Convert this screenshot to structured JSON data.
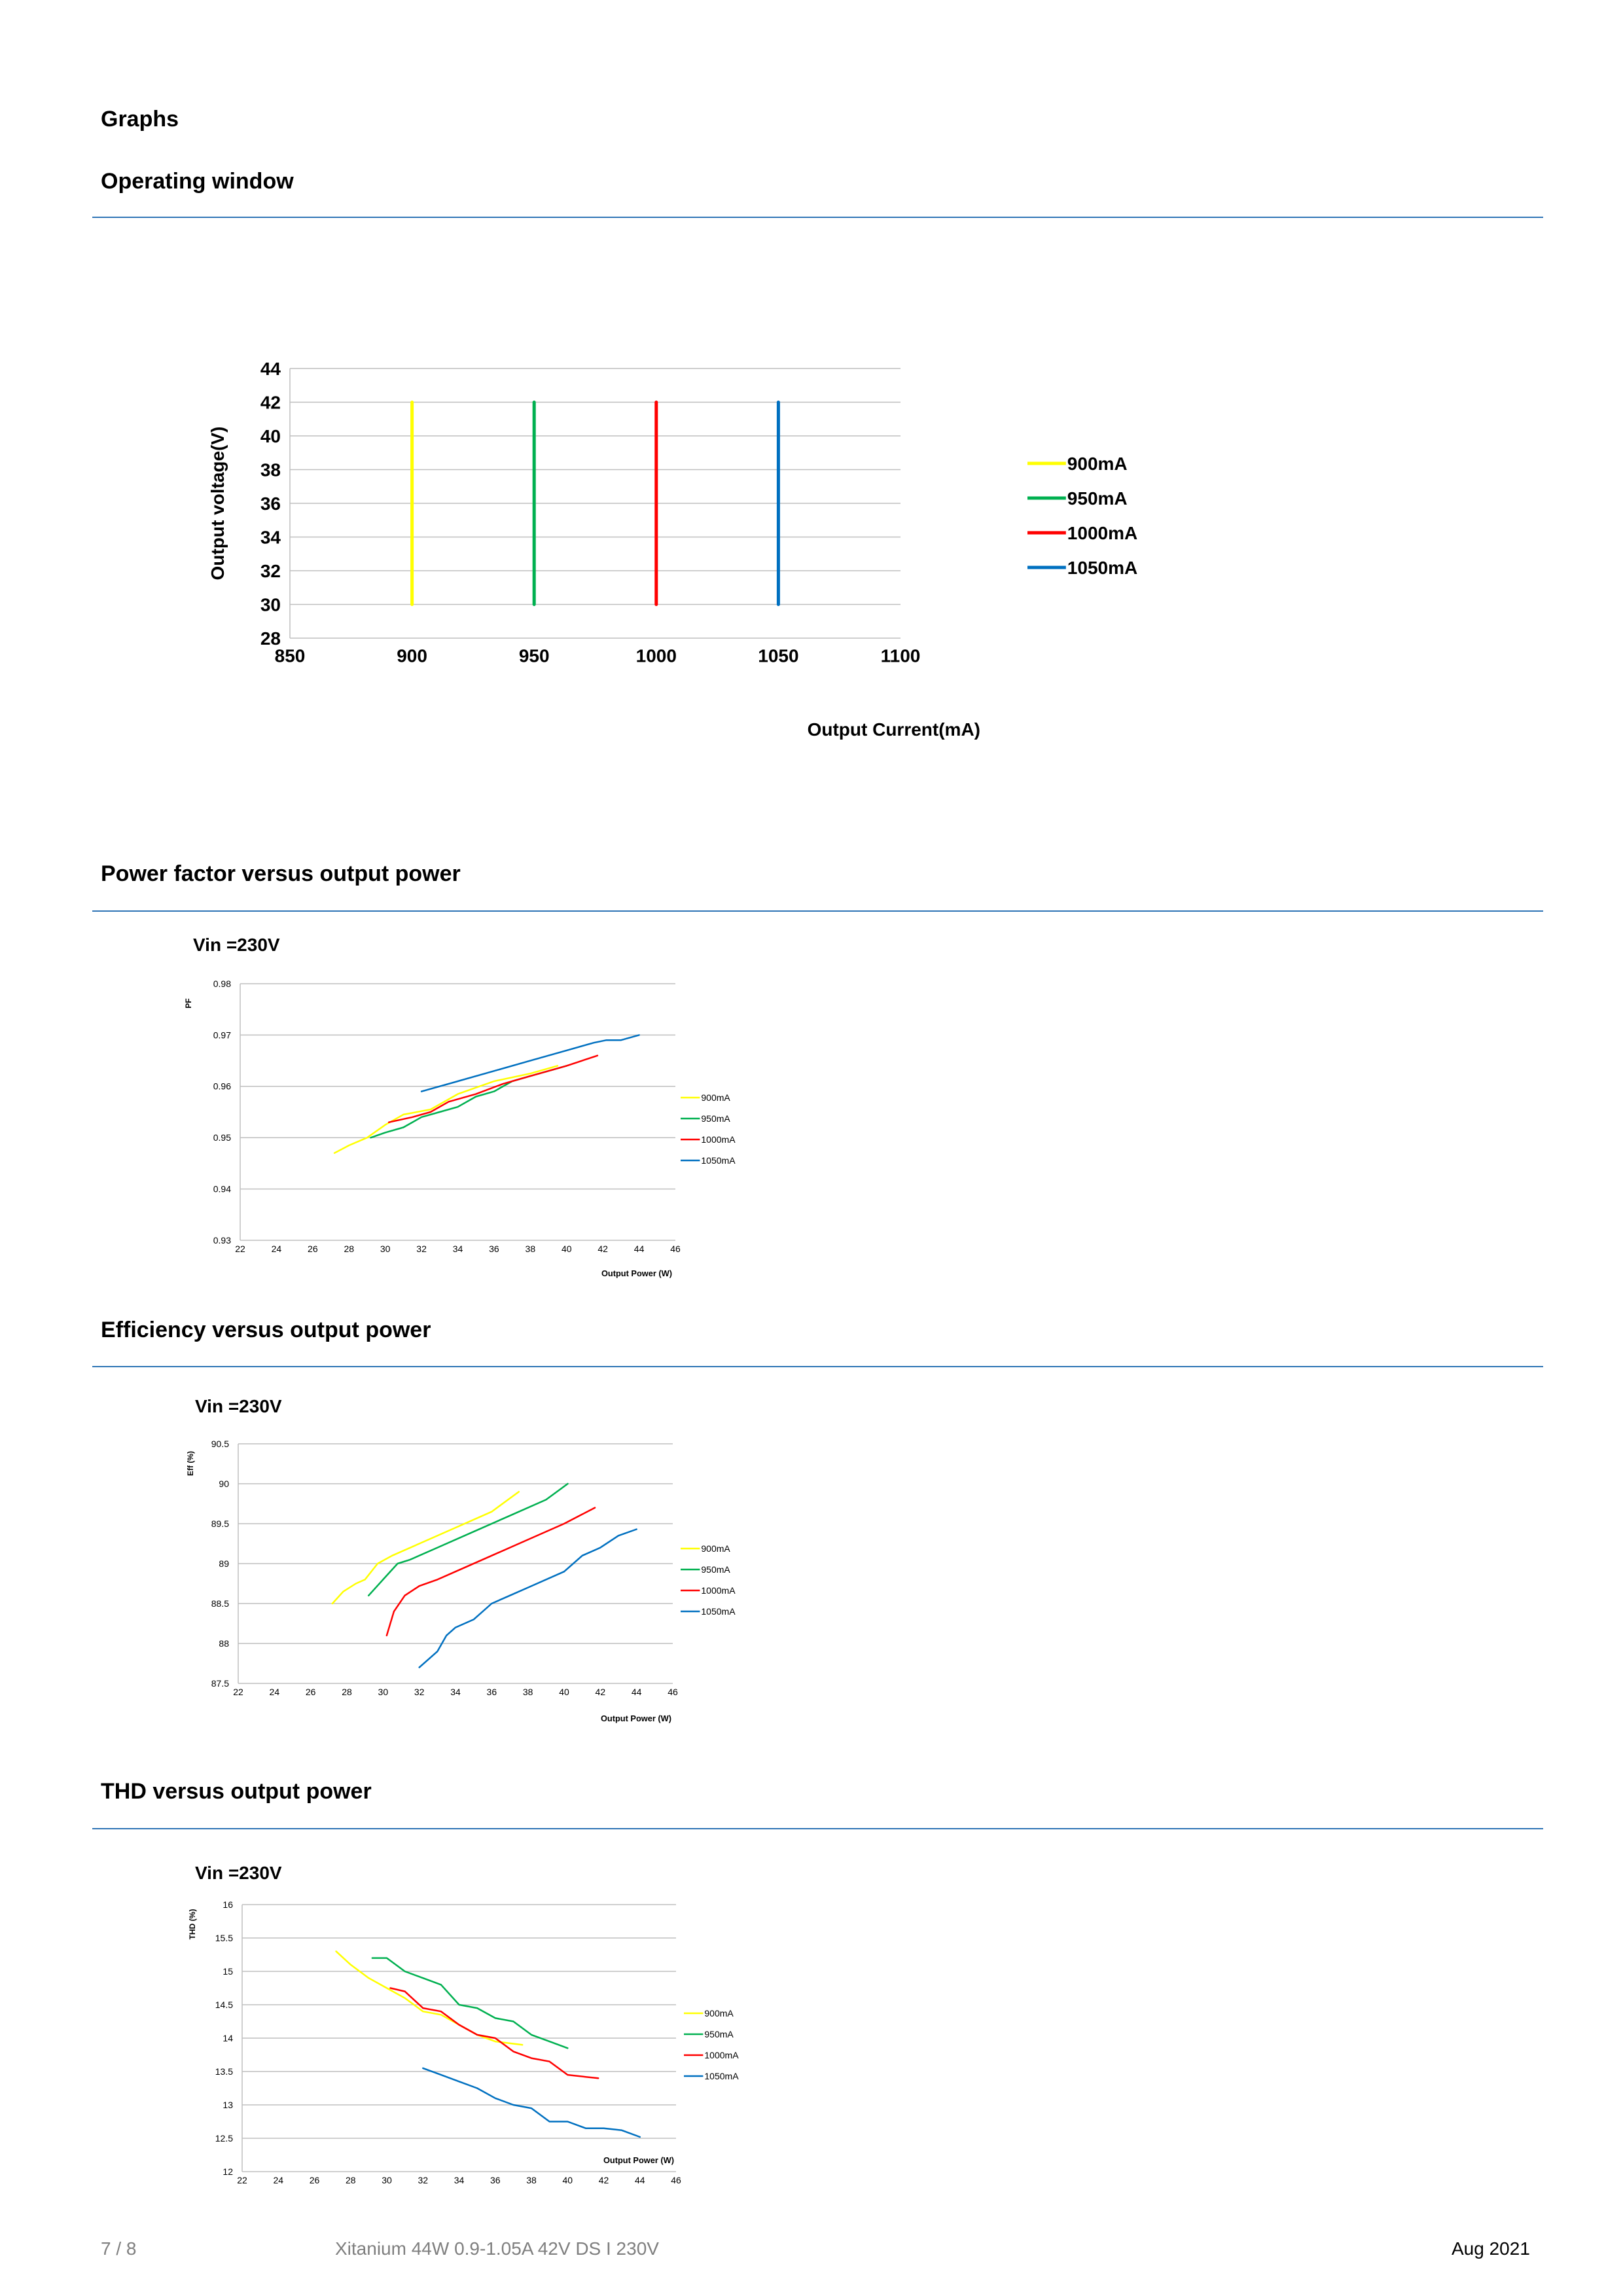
{
  "page": {
    "section_title": "Graphs",
    "footer": {
      "page_number": "7 / 8",
      "product": "Xitanium 44W 0.9-1.05A 42V DS I 230V",
      "date": "Aug 2021"
    }
  },
  "sections": [
    {
      "title": "Operating window"
    },
    {
      "title": "Power factor versus output power",
      "note": "Vin =230V"
    },
    {
      "title": "Efficiency versus output power",
      "note": "Vin =230V"
    },
    {
      "title": "THD versus output power",
      "note": "Vin =230V"
    }
  ],
  "colors": {
    "900mA": "#ffff00",
    "950mA": "#00b050",
    "1000mA": "#ff0000",
    "1050mA": "#0070c0",
    "rule": "#2e74b5"
  },
  "chart_data": [
    {
      "type": "line",
      "title": "",
      "xlabel": "Output Current(mA)",
      "ylabel": "Output voltage(V)",
      "xlim": [
        850,
        1100
      ],
      "ylim": [
        28,
        44
      ],
      "xticks": [
        850,
        900,
        950,
        1000,
        1050,
        1100
      ],
      "yticks": [
        28,
        30,
        32,
        34,
        36,
        38,
        40,
        42,
        44
      ],
      "grid": true,
      "legend": "right",
      "series": [
        {
          "name": "900mA",
          "color": "#ffff00",
          "points": [
            [
              900,
              30
            ],
            [
              900,
              42
            ]
          ]
        },
        {
          "name": "950mA",
          "color": "#00b050",
          "points": [
            [
              950,
              30
            ],
            [
              950,
              42
            ]
          ]
        },
        {
          "name": "1000mA",
          "color": "#ff0000",
          "points": [
            [
              1000,
              30
            ],
            [
              1000,
              42
            ]
          ]
        },
        {
          "name": "1050mA",
          "color": "#0070c0",
          "points": [
            [
              1050,
              30
            ],
            [
              1050,
              42
            ]
          ]
        }
      ]
    },
    {
      "type": "line",
      "title": "",
      "xlabel": "Output Power (W)",
      "ylabel": "PF",
      "xlim": [
        22,
        46
      ],
      "ylim": [
        0.93,
        0.98
      ],
      "xticks": [
        22,
        24,
        26,
        28,
        30,
        32,
        34,
        36,
        38,
        40,
        42,
        44,
        46
      ],
      "yticks": [
        0.93,
        0.94,
        0.95,
        0.96,
        0.97,
        0.98
      ],
      "ytick_decimals": 2,
      "grid": true,
      "legend": "right",
      "series": [
        {
          "name": "900mA",
          "color": "#ffff00",
          "points": [
            [
              27.2,
              0.947
            ],
            [
              28,
              0.9485
            ],
            [
              29,
              0.95
            ],
            [
              30,
              0.9525
            ],
            [
              31,
              0.9545
            ],
            [
              32.5,
              0.9555
            ],
            [
              34,
              0.9585
            ],
            [
              36,
              0.961
            ],
            [
              38,
              0.9625
            ],
            [
              39.5,
              0.964
            ]
          ]
        },
        {
          "name": "950mA",
          "color": "#00b050",
          "points": [
            [
              29.2,
              0.95
            ],
            [
              30,
              0.951
            ],
            [
              31,
              0.952
            ],
            [
              32,
              0.954
            ],
            [
              33,
              0.955
            ],
            [
              34,
              0.956
            ],
            [
              35,
              0.958
            ],
            [
              36,
              0.959
            ],
            [
              37,
              0.961
            ],
            [
              38,
              0.962
            ],
            [
              39,
              0.963
            ],
            [
              40,
              0.964
            ]
          ]
        },
        {
          "name": "1000mA",
          "color": "#ff0000",
          "points": [
            [
              30.2,
              0.953
            ],
            [
              31.5,
              0.954
            ],
            [
              32.5,
              0.955
            ],
            [
              33.5,
              0.957
            ],
            [
              35,
              0.9585
            ],
            [
              36.5,
              0.9605
            ],
            [
              38,
              0.962
            ],
            [
              40,
              0.964
            ],
            [
              41.7,
              0.966
            ]
          ]
        },
        {
          "name": "1050mA",
          "color": "#0070c0",
          "points": [
            [
              32,
              0.959
            ],
            [
              34,
              0.961
            ],
            [
              36,
              0.963
            ],
            [
              38,
              0.965
            ],
            [
              40,
              0.967
            ],
            [
              41.5,
              0.9685
            ],
            [
              42.2,
              0.969
            ],
            [
              43,
              0.969
            ],
            [
              43.5,
              0.9695
            ],
            [
              44,
              0.97
            ]
          ]
        }
      ]
    },
    {
      "type": "line",
      "title": "",
      "xlabel": "Output Power (W)",
      "ylabel": "Eff  (%)",
      "xlim": [
        22,
        46
      ],
      "ylim": [
        87.5,
        90.5
      ],
      "xticks": [
        22,
        24,
        26,
        28,
        30,
        32,
        34,
        36,
        38,
        40,
        42,
        44,
        46
      ],
      "yticks": [
        87.5,
        88,
        88.5,
        89,
        89.5,
        90,
        90.5
      ],
      "ytick_decimals": 0,
      "grid": true,
      "legend": "right",
      "series": [
        {
          "name": "900mA",
          "color": "#ffff00",
          "points": [
            [
              27.2,
              88.5
            ],
            [
              27.8,
              88.65
            ],
            [
              28.5,
              88.75
            ],
            [
              29,
              88.8
            ],
            [
              29.7,
              89.0
            ],
            [
              30.5,
              89.1
            ],
            [
              32,
              89.25
            ],
            [
              34,
              89.45
            ],
            [
              36,
              89.65
            ],
            [
              37.5,
              89.9
            ]
          ]
        },
        {
          "name": "950mA",
          "color": "#00b050",
          "points": [
            [
              29.2,
              88.6
            ],
            [
              30,
              88.8
            ],
            [
              30.8,
              89.0
            ],
            [
              31.5,
              89.05
            ],
            [
              33,
              89.2
            ],
            [
              35,
              89.4
            ],
            [
              37,
              89.6
            ],
            [
              39,
              89.8
            ],
            [
              40.2,
              90.0
            ]
          ]
        },
        {
          "name": "1000mA",
          "color": "#ff0000",
          "points": [
            [
              30.2,
              88.1
            ],
            [
              30.6,
              88.4
            ],
            [
              31.2,
              88.6
            ],
            [
              32,
              88.72
            ],
            [
              33,
              88.8
            ],
            [
              34,
              88.9
            ],
            [
              36,
              89.1
            ],
            [
              38,
              89.3
            ],
            [
              40,
              89.5
            ],
            [
              41.7,
              89.7
            ]
          ]
        },
        {
          "name": "1050mA",
          "color": "#0070c0",
          "points": [
            [
              32,
              87.7
            ],
            [
              33,
              87.9
            ],
            [
              33.5,
              88.1
            ],
            [
              34,
              88.2
            ],
            [
              35,
              88.3
            ],
            [
              36,
              88.5
            ],
            [
              37,
              88.6
            ],
            [
              38,
              88.7
            ],
            [
              40,
              88.9
            ],
            [
              41,
              89.1
            ],
            [
              42,
              89.2
            ],
            [
              43,
              89.35
            ],
            [
              44,
              89.43
            ]
          ]
        }
      ]
    },
    {
      "type": "line",
      "title": "",
      "xlabel": "Output Power (W)",
      "ylabel": "THD  (%)",
      "xlim": [
        22,
        46
      ],
      "ylim": [
        12,
        16
      ],
      "xticks": [
        22,
        24,
        26,
        28,
        30,
        32,
        34,
        36,
        38,
        40,
        42,
        44,
        46
      ],
      "yticks": [
        12,
        12.5,
        13,
        13.5,
        14,
        14.5,
        15,
        15.5,
        16
      ],
      "ytick_decimals": 0,
      "grid": true,
      "legend": "right",
      "series": [
        {
          "name": "900mA",
          "color": "#ffff00",
          "points": [
            [
              27.2,
              15.3
            ],
            [
              28,
              15.1
            ],
            [
              29,
              14.9
            ],
            [
              30,
              14.75
            ],
            [
              31,
              14.6
            ],
            [
              32,
              14.4
            ],
            [
              33,
              14.35
            ],
            [
              34,
              14.2
            ],
            [
              35,
              14.05
            ],
            [
              36,
              13.95
            ],
            [
              37.5,
              13.9
            ]
          ]
        },
        {
          "name": "950mA",
          "color": "#00b050",
          "points": [
            [
              29.2,
              15.2
            ],
            [
              30,
              15.2
            ],
            [
              31,
              15.0
            ],
            [
              32,
              14.9
            ],
            [
              33,
              14.8
            ],
            [
              34,
              14.5
            ],
            [
              35,
              14.45
            ],
            [
              36,
              14.3
            ],
            [
              37,
              14.25
            ],
            [
              38,
              14.05
            ],
            [
              39,
              13.95
            ],
            [
              40,
              13.85
            ]
          ]
        },
        {
          "name": "1000mA",
          "color": "#ff0000",
          "points": [
            [
              30.2,
              14.75
            ],
            [
              31,
              14.7
            ],
            [
              32,
              14.45
            ],
            [
              33,
              14.4
            ],
            [
              34,
              14.2
            ],
            [
              35,
              14.05
            ],
            [
              36,
              14.0
            ],
            [
              37,
              13.8
            ],
            [
              38,
              13.7
            ],
            [
              39,
              13.65
            ],
            [
              40,
              13.45
            ],
            [
              41,
              13.42
            ],
            [
              41.7,
              13.4
            ]
          ]
        },
        {
          "name": "1050mA",
          "color": "#0070c0",
          "points": [
            [
              32,
              13.55
            ],
            [
              33,
              13.45
            ],
            [
              34,
              13.35
            ],
            [
              35,
              13.25
            ],
            [
              36,
              13.1
            ],
            [
              37,
              13.0
            ],
            [
              38,
              12.95
            ],
            [
              39,
              12.75
            ],
            [
              40,
              12.75
            ],
            [
              41,
              12.65
            ],
            [
              42,
              12.65
            ],
            [
              43,
              12.62
            ],
            [
              44,
              12.52
            ]
          ]
        }
      ]
    }
  ]
}
